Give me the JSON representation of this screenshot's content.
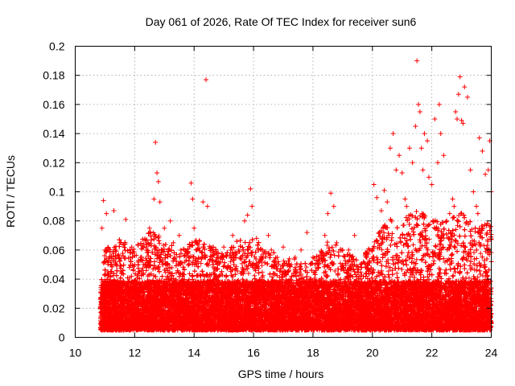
{
  "chart_data": {
    "type": "scatter",
    "title": "Day 061 of 2026, Rate Of TEC Index for receiver sun6",
    "xlabel": "GPS time / hours",
    "ylabel": "ROTI / TECUs",
    "xlim": [
      10,
      24
    ],
    "ylim": [
      0,
      0.2
    ],
    "x_ticks": [
      10,
      12,
      14,
      16,
      18,
      20,
      22,
      24
    ],
    "x_tick_labels": [
      "10",
      "12",
      "14",
      "16",
      "18",
      "20",
      "22",
      "24"
    ],
    "y_ticks": [
      0,
      0.02,
      0.04,
      0.06,
      0.08,
      0.1,
      0.12,
      0.14,
      0.16,
      0.18,
      0.2
    ],
    "y_tick_labels": [
      "0",
      "0.02",
      "0.04",
      "0.06",
      "0.08",
      "0.1",
      "0.12",
      "0.14",
      "0.16",
      "0.18",
      "0.2"
    ],
    "grid": true,
    "marker": "+",
    "color": "#ff0000",
    "series": [
      {
        "x": [
          10.9,
          10.95,
          11.0,
          11.05,
          11.1,
          11.2,
          11.3,
          11.35,
          11.5,
          11.7,
          11.85,
          11.9,
          12.0,
          12.2,
          12.4,
          12.5,
          12.65,
          12.7,
          12.75,
          12.8,
          12.85,
          13.0,
          13.2,
          13.3,
          13.5,
          13.7,
          13.9,
          13.95,
          14.0,
          14.1,
          14.3,
          14.4,
          14.45,
          14.6,
          14.8,
          15.0,
          15.3,
          15.5,
          15.7,
          15.8,
          15.9,
          15.95,
          16.1,
          16.3,
          16.5,
          16.6,
          16.8,
          17.0,
          17.2,
          17.4,
          17.6,
          17.8,
          18.0,
          18.2,
          18.4,
          18.5,
          18.6,
          18.7,
          18.8,
          19.0,
          19.2,
          19.4,
          19.6,
          19.8,
          19.9,
          20.0,
          20.05,
          20.15,
          20.3,
          20.4,
          20.5,
          20.6,
          20.7,
          20.8,
          20.9,
          21.0,
          21.1,
          21.15,
          21.25,
          21.35,
          21.45,
          21.5,
          21.55,
          21.6,
          21.65,
          21.7,
          21.75,
          21.85,
          21.9,
          22.0,
          22.1,
          22.2,
          22.25,
          22.3,
          22.4,
          22.5,
          22.6,
          22.7,
          22.75,
          22.8,
          22.85,
          22.9,
          22.95,
          23.0,
          23.05,
          23.1,
          23.2,
          23.3,
          23.4,
          23.5,
          23.55,
          23.6,
          23.7,
          23.8,
          23.9,
          23.95,
          24.0
        ],
        "y": [
          0.075,
          0.094,
          0.06,
          0.085,
          0.045,
          0.05,
          0.087,
          0.06,
          0.065,
          0.081,
          0.058,
          0.062,
          0.05,
          0.055,
          0.06,
          0.075,
          0.095,
          0.134,
          0.113,
          0.107,
          0.093,
          0.075,
          0.08,
          0.065,
          0.07,
          0.06,
          0.106,
          0.095,
          0.075,
          0.065,
          0.093,
          0.177,
          0.09,
          0.06,
          0.055,
          0.062,
          0.07,
          0.06,
          0.08,
          0.084,
          0.102,
          0.09,
          0.068,
          0.06,
          0.07,
          0.06,
          0.055,
          0.062,
          0.05,
          0.055,
          0.06,
          0.072,
          0.055,
          0.05,
          0.07,
          0.085,
          0.099,
          0.09,
          0.065,
          0.06,
          0.06,
          0.07,
          0.05,
          0.055,
          0.06,
          0.06,
          0.105,
          0.096,
          0.087,
          0.101,
          0.093,
          0.13,
          0.14,
          0.115,
          0.125,
          0.113,
          0.095,
          0.09,
          0.13,
          0.12,
          0.145,
          0.19,
          0.16,
          0.155,
          0.13,
          0.115,
          0.14,
          0.135,
          0.11,
          0.105,
          0.15,
          0.12,
          0.16,
          0.14,
          0.125,
          0.08,
          0.085,
          0.095,
          0.09,
          0.155,
          0.15,
          0.167,
          0.179,
          0.149,
          0.147,
          0.172,
          0.165,
          0.115,
          0.1,
          0.09,
          0.085,
          0.137,
          0.128,
          0.112,
          0.115,
          0.135,
          0.1
        ],
        "dense_band": {
          "x_start": 10.85,
          "x_end": 24.0,
          "points_per_hour": 2200,
          "y_floor": 0.005,
          "y_typical_max": 0.05,
          "envelope_x": [
            10.85,
            11.0,
            11.5,
            12.0,
            12.5,
            13.0,
            13.5,
            14.0,
            14.5,
            15.0,
            15.5,
            16.0,
            16.5,
            17.0,
            17.5,
            18.0,
            18.5,
            19.0,
            19.5,
            20.0,
            20.5,
            21.0,
            21.5,
            22.0,
            22.5,
            23.0,
            23.5,
            24.0
          ],
          "envelope_y": [
            0.03,
            0.045,
            0.05,
            0.045,
            0.055,
            0.05,
            0.045,
            0.05,
            0.048,
            0.042,
            0.05,
            0.05,
            0.045,
            0.04,
            0.04,
            0.04,
            0.05,
            0.045,
            0.04,
            0.048,
            0.06,
            0.06,
            0.065,
            0.06,
            0.06,
            0.065,
            0.055,
            0.06
          ]
        }
      }
    ]
  }
}
